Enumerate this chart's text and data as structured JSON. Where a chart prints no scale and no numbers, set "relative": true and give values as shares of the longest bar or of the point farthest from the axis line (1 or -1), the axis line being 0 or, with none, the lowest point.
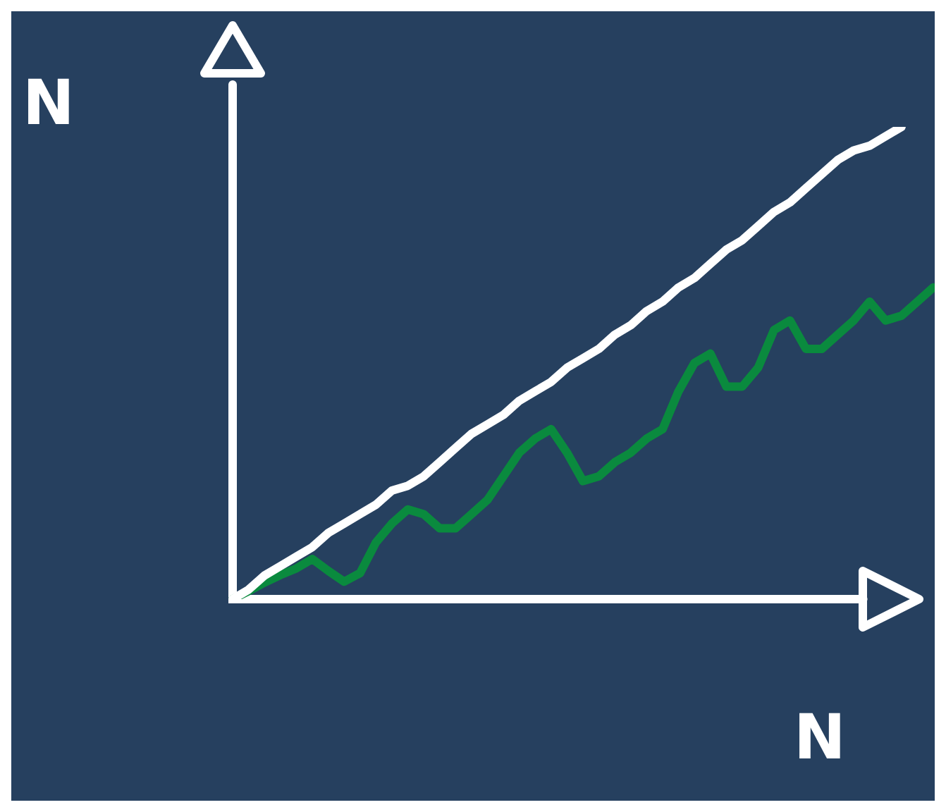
{
  "chart_data": {
    "type": "line",
    "relative": true,
    "xlabel": "N",
    "ylabel": "N",
    "tick_labels": false,
    "legend": false,
    "marker": "none",
    "line_style": "solid",
    "categories": [
      null,
      null,
      null,
      null,
      null,
      null,
      null,
      null,
      null,
      null,
      null,
      null,
      null,
      null,
      null,
      null,
      null,
      null,
      null,
      null,
      null,
      null,
      null,
      null,
      null,
      null,
      null,
      null,
      null,
      null,
      null,
      null,
      null,
      null,
      null,
      null,
      null,
      null,
      null,
      null,
      null,
      null,
      null,
      null,
      null
    ],
    "series": [
      {
        "color": "#ffffff",
        "values": [
          0,
          0.02,
          0.05,
          0.07,
          0.09,
          0.11,
          0.14,
          0.16,
          0.18,
          0.2,
          0.23,
          0.24,
          0.26,
          0.29,
          0.32,
          0.35,
          0.37,
          0.39,
          0.42,
          0.44,
          0.46,
          0.49,
          0.51,
          0.53,
          0.56,
          0.58,
          0.61,
          0.63,
          0.66,
          0.68,
          0.71,
          0.74,
          0.76,
          0.79,
          0.82,
          0.84,
          0.87,
          0.9,
          0.93,
          0.95,
          0.96,
          0.98,
          1,
          null,
          null
        ]
      },
      {
        "color": "#0a8a3e",
        "values": [
          0,
          0.017,
          0.035,
          0.051,
          0.065,
          0.085,
          0.06,
          0.037,
          0.055,
          0.12,
          0.16,
          0.19,
          0.18,
          0.15,
          0.15,
          0.18,
          0.21,
          0.26,
          0.31,
          0.34,
          0.36,
          0.31,
          0.25,
          0.26,
          0.29,
          0.31,
          0.34,
          0.36,
          0.44,
          0.5,
          0.52,
          0.45,
          0.45,
          0.49,
          0.57,
          0.59,
          0.53,
          0.53,
          0.56,
          0.59,
          0.63,
          0.59,
          0.6,
          0.63,
          0.66
        ]
      }
    ]
  }
}
